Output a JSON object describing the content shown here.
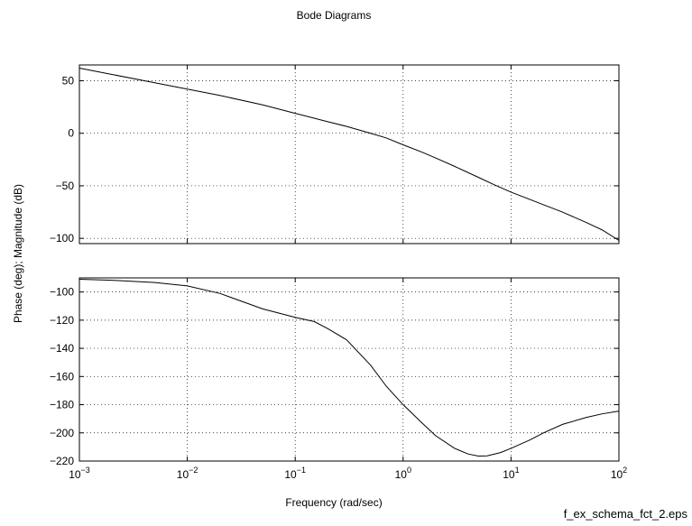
{
  "figure": {
    "title": "Bode Diagrams",
    "ylabel": "Phase (deg); Magnitude (dB)",
    "xlabel": "Frequency (rad/sec)",
    "footer": "f_ex_schema_fct_2.eps"
  },
  "chart_data": [
    {
      "type": "line",
      "name": "magnitude",
      "xscale": "log",
      "xlim": [
        0.001,
        100
      ],
      "ylim": [
        -105,
        65
      ],
      "grid": true,
      "xticks": [
        0.001,
        0.01,
        0.1,
        1,
        10,
        100
      ],
      "xtick_labels": [],
      "yticks": [
        50,
        0,
        -50,
        -100
      ],
      "ytick_labels": [
        "50",
        "0",
        "−50",
        "−100"
      ],
      "series": [
        {
          "x": [
            0.001,
            0.002,
            0.005,
            0.01,
            0.02,
            0.05,
            0.1,
            0.2,
            0.3,
            0.5,
            0.7,
            1,
            1.5,
            2,
            3,
            5,
            7,
            10,
            20,
            30,
            50,
            70,
            100
          ],
          "y": [
            62,
            56,
            48,
            42,
            36,
            27,
            19,
            11,
            6.5,
            0,
            -4.5,
            -11,
            -18,
            -23.5,
            -31.5,
            -42,
            -49,
            -56,
            -68,
            -75,
            -85,
            -92,
            -102
          ]
        }
      ]
    },
    {
      "type": "line",
      "name": "phase",
      "xscale": "log",
      "xlim": [
        0.001,
        100
      ],
      "ylim": [
        -220,
        -90
      ],
      "grid": true,
      "xticks": [
        0.001,
        0.01,
        0.1,
        1,
        10,
        100
      ],
      "xtick_labels": [
        [
          "10",
          "−3"
        ],
        [
          "10",
          "−2"
        ],
        [
          "10",
          "−1"
        ],
        [
          "10",
          "0"
        ],
        [
          "10",
          "1"
        ],
        [
          "10",
          "2"
        ]
      ],
      "yticks": [
        -100,
        -120,
        -140,
        -160,
        -180,
        -200,
        -220
      ],
      "ytick_labels": [
        "−100",
        "−120",
        "−140",
        "−160",
        "−180",
        "−200",
        "−220"
      ],
      "series": [
        {
          "x": [
            0.001,
            0.002,
            0.005,
            0.01,
            0.02,
            0.05,
            0.1,
            0.15,
            0.2,
            0.3,
            0.5,
            0.7,
            1,
            1.5,
            2,
            3,
            4,
            5,
            6,
            8,
            10,
            15,
            20,
            30,
            50,
            70,
            100
          ],
          "y": [
            -91,
            -91.7,
            -93.3,
            -95.7,
            -101,
            -112,
            -118,
            -121,
            -126,
            -134,
            -152,
            -167,
            -180,
            -193,
            -202,
            -211,
            -215,
            -216.5,
            -216.3,
            -214,
            -211,
            -205,
            -200,
            -194,
            -189,
            -186.5,
            -184.5
          ]
        }
      ]
    }
  ]
}
